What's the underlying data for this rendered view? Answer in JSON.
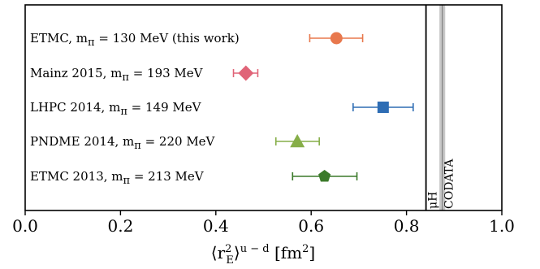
{
  "chart_data": {
    "type": "scatter",
    "xlim": [
      0.0,
      1.0
    ],
    "x_ticks": [
      "0.0",
      "0.2",
      "0.4",
      "0.6",
      "0.8",
      "1.0"
    ],
    "x_tick_values": [
      0.0,
      0.2,
      0.4,
      0.6,
      0.8,
      1.0
    ],
    "xlabel": {
      "open": "⟨r",
      "sup": "2",
      "sub": "E",
      "close": "⟩",
      "sup2": "u − d",
      "unit": " [fm",
      "unit_sup": "2",
      "unit_close": "]"
    },
    "grid": false,
    "legend": "none",
    "series": [
      {
        "name": "ETMC, m",
        "sub": "π",
        "suffix": " = 130 MeV (this work)",
        "x": 0.653,
        "xerr_low": 0.056,
        "xerr_high": 0.055,
        "marker": "circle",
        "color": "#e8784d"
      },
      {
        "name": "Mainz 2015, m",
        "sub": "π",
        "suffix": " = 193 MeV",
        "x": 0.463,
        "xerr_low": 0.026,
        "xerr_high": 0.025,
        "marker": "diamond",
        "color": "#e06478"
      },
      {
        "name": "LHPC 2014, m",
        "sub": "π",
        "suffix": " = 149 MeV",
        "x": 0.751,
        "xerr_low": 0.063,
        "xerr_high": 0.063,
        "marker": "square",
        "color": "#2e6db4"
      },
      {
        "name": "PNDME 2014, m",
        "sub": "π",
        "suffix": " = 220 MeV",
        "x": 0.571,
        "xerr_low": 0.045,
        "xerr_high": 0.046,
        "marker": "triangle",
        "color": "#86ae48"
      },
      {
        "name": "ETMC 2013, m",
        "sub": "π",
        "suffix": " = 213 MeV",
        "x": 0.628,
        "xerr_low": 0.067,
        "xerr_high": 0.068,
        "marker": "pentagon",
        "color": "#3b7a2a"
      }
    ],
    "reference_lines": [
      {
        "label": "μH",
        "x": 0.8409,
        "band": 0.0004,
        "color": "#000000"
      },
      {
        "label": "CODATA",
        "x": 0.8751,
        "band": 0.0061,
        "color": "#888888"
      }
    ]
  }
}
